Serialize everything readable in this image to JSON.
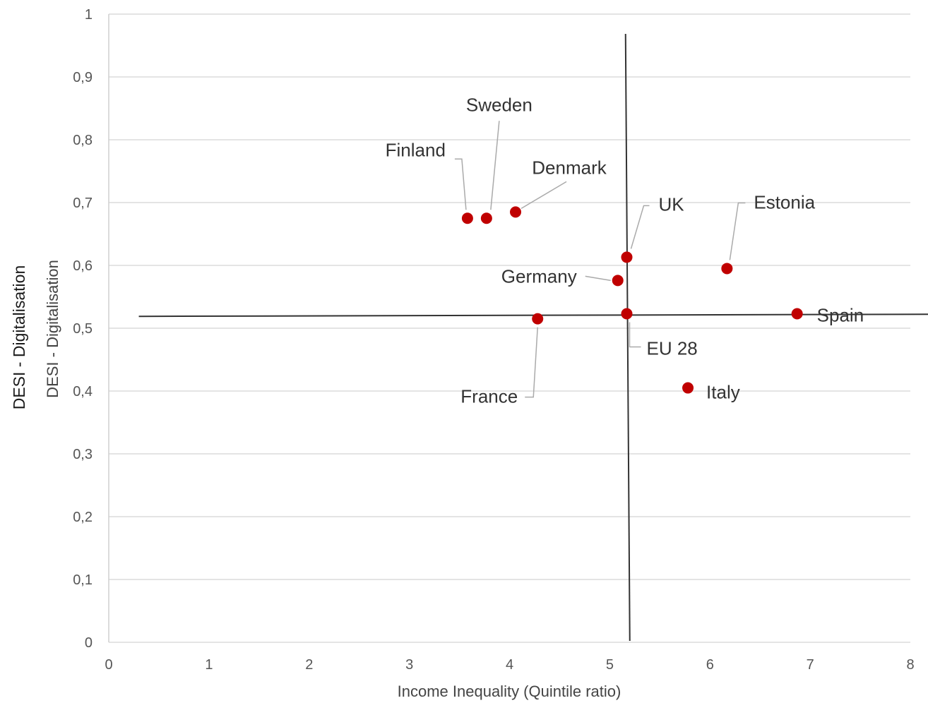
{
  "outer_ylabel": "DESI - Digitalisation",
  "chart_data": {
    "type": "scatter",
    "xlabel": "Income Inequality (Quintile ratio)",
    "ylabel": "DESI - Digitalisation",
    "xlim": [
      0,
      8
    ],
    "ylim": [
      0,
      1
    ],
    "x_ticks": [
      "0",
      "1",
      "2",
      "3",
      "4",
      "5",
      "6",
      "7",
      "8"
    ],
    "y_ticks": [
      "0",
      "0,1",
      "0,2",
      "0,3",
      "0,4",
      "0,5",
      "0,6",
      "0,7",
      "0,8",
      "0,9",
      "1"
    ],
    "grid": true,
    "reference_lines": {
      "x": 5.2,
      "y": 0.52
    },
    "point_color": "#c00000",
    "points": [
      {
        "label": "Finland",
        "x": 3.58,
        "y": 0.675
      },
      {
        "label": "Sweden",
        "x": 3.77,
        "y": 0.675
      },
      {
        "label": "Denmark",
        "x": 4.06,
        "y": 0.685
      },
      {
        "label": "UK",
        "x": 5.17,
        "y": 0.613
      },
      {
        "label": "Germany",
        "x": 5.08,
        "y": 0.576
      },
      {
        "label": "Estonia",
        "x": 6.17,
        "y": 0.595
      },
      {
        "label": "EU 28",
        "x": 5.17,
        "y": 0.523
      },
      {
        "label": "Spain",
        "x": 6.87,
        "y": 0.523
      },
      {
        "label": "France",
        "x": 4.28,
        "y": 0.515
      },
      {
        "label": "Italy",
        "x": 5.78,
        "y": 0.405
      }
    ]
  }
}
